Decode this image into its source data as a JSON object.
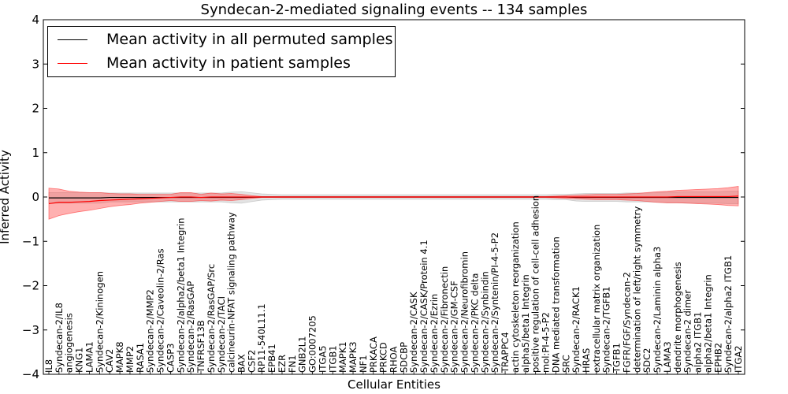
{
  "chart_data": {
    "type": "line",
    "title": "Syndecan-2-mediated signaling events -- 134 samples",
    "xlabel": "Cellular Entities",
    "ylabel": "Inferred Activity",
    "ylim": [
      -4,
      4
    ],
    "yticks": [
      -4,
      -3,
      -2,
      -1,
      0,
      1,
      2,
      3,
      4
    ],
    "grid": false,
    "legend_position": "top-left",
    "categories": [
      "IL8",
      "Syndecan-2/IL8",
      "angiogenesis",
      "KNG1",
      "LAMA1",
      "Syndecan-2/Kininogen",
      "CAV2",
      "MAPK8",
      "MMP2",
      "RASA1",
      "Syndecan-2/MMP2",
      "Syndecan-2/Caveolin-2/Ras",
      "CASP3",
      "Syndecan-2/alpha2/beta1 Integrin",
      "Syndecan-2/RasGAP",
      "TNFRSF13B",
      "Syndecan-2/RasGAP/Src",
      "Syndecan-2/TACI",
      "calcineurin-NFAT signaling pathway",
      "BAX",
      "CSF2",
      "RP11-540L11.1",
      "EPB41",
      "EZR",
      "FN1",
      "GNB2L1",
      "GO:0007205",
      "ITGA5",
      "ITGB1",
      "MAPK1",
      "MAPK3",
      "NF1",
      "PRKACA",
      "PRKCD",
      "RHOA",
      "SDCBP",
      "Syndecan-2/CASK",
      "Syndecan-2/CASK/Protein 4.1",
      "Syndecan-2/Ezrin",
      "Syndecan-2/Fibronectin",
      "Syndecan-2/GM-CSF",
      "Syndecan-2/Neurofibromin",
      "Syndecan-2/PKC delta",
      "Syndecan-2/Synbindin",
      "Syndecan-2/Syntenin/PI-4-5-P2",
      "TRAPPC4",
      "actin cytoskeleton reorganization",
      "alpha5/beta1 Integrin",
      "positive regulation of cell-cell adhesion",
      "mol:PI-4-5-P2",
      "DNA mediated transformation",
      "SRC",
      "Syndecan-2/RACK1",
      "HRAS",
      "extracellular matrix organization",
      "Syndecan-2/TGFB1",
      "TGFB1",
      "FGFR/FGF/Syndecan-2",
      "determination of left/right symmetry",
      "SDC2",
      "Syndecan-2/Laminin alpha3",
      "LAMA3",
      "dendrite morphogenesis",
      "Syndecan-2 dimer",
      "alpha2 ITGB1",
      "alpha2/beta1 Integrin",
      "EPHB2",
      "Syndecan-2/alpha2 ITGB1",
      "ITGA2"
    ],
    "series": [
      {
        "name": "Mean activity in all permuted samples",
        "color": "#000000",
        "values": [
          -0.02,
          -0.02,
          -0.02,
          -0.02,
          -0.02,
          -0.02,
          -0.01,
          -0.01,
          -0.01,
          -0.01,
          -0.01,
          -0.01,
          -0.01,
          -0.01,
          -0.01,
          -0.01,
          -0.01,
          -0.01,
          -0.01,
          -0.01,
          -0.005,
          0,
          0,
          0,
          0,
          0,
          0,
          0,
          0,
          0,
          0,
          0,
          0,
          0,
          0,
          0,
          0,
          0,
          0,
          0,
          0,
          0,
          0,
          0,
          0,
          0,
          0,
          0,
          0,
          0,
          0,
          0,
          -0.01,
          -0.01,
          -0.01,
          -0.01,
          -0.01,
          -0.01,
          -0.01,
          -0.01,
          -0.01,
          -0.01,
          -0.01,
          -0.01,
          -0.01,
          -0.01,
          -0.01,
          -0.01,
          -0.01
        ],
        "band": [
          0.12,
          0.12,
          0.12,
          0.12,
          0.12,
          0.12,
          0.1,
          0.1,
          0.1,
          0.1,
          0.1,
          0.1,
          0.1,
          0.1,
          0.1,
          0.1,
          0.1,
          0.1,
          0.12,
          0.13,
          0.1,
          0.07,
          0.06,
          0.05,
          0.05,
          0.05,
          0.05,
          0.05,
          0.05,
          0.05,
          0.05,
          0.05,
          0.05,
          0.05,
          0.05,
          0.05,
          0.05,
          0.05,
          0.05,
          0.05,
          0.05,
          0.05,
          0.05,
          0.05,
          0.05,
          0.05,
          0.05,
          0.05,
          0.05,
          0.05,
          0.06,
          0.06,
          0.08,
          0.09,
          0.09,
          0.09,
          0.09,
          0.1,
          0.1,
          0.1,
          0.11,
          0.12,
          0.12,
          0.13,
          0.13,
          0.13,
          0.13,
          0.14,
          0.14
        ]
      },
      {
        "name": "Mean activity in patient samples",
        "color": "#ff0000",
        "values": [
          -0.15,
          -0.12,
          -0.12,
          -0.11,
          -0.1,
          -0.08,
          -0.07,
          -0.06,
          -0.05,
          -0.04,
          -0.03,
          -0.02,
          -0.01,
          0,
          0,
          -0.01,
          0,
          0,
          0,
          0,
          0,
          0,
          0,
          0,
          0,
          0,
          0,
          0,
          0,
          0,
          0,
          0,
          0,
          0,
          0,
          0,
          0,
          0,
          0,
          0,
          0,
          0,
          0,
          0,
          0,
          0,
          0,
          0,
          0,
          0,
          0,
          0,
          0,
          0,
          0,
          0,
          0,
          0,
          0,
          0,
          0,
          0,
          0.01,
          0.01,
          0.01,
          0.01,
          0.01,
          0.01,
          0.02
        ],
        "band": [
          0.35,
          0.3,
          0.25,
          0.22,
          0.2,
          0.18,
          0.15,
          0.13,
          0.12,
          0.1,
          0.09,
          0.08,
          0.07,
          0.1,
          0.1,
          0.07,
          0.09,
          0.07,
          0.08,
          0.06,
          0.03,
          0.01,
          0.01,
          0.01,
          0.01,
          0.01,
          0.01,
          0.01,
          0.01,
          0.01,
          0.01,
          0.01,
          0.01,
          0.01,
          0.01,
          0.01,
          0.01,
          0.01,
          0.01,
          0.01,
          0.01,
          0.01,
          0.01,
          0.01,
          0.01,
          0.01,
          0.01,
          0.01,
          0.01,
          0.01,
          0.02,
          0.03,
          0.04,
          0.05,
          0.06,
          0.06,
          0.06,
          0.07,
          0.08,
          0.1,
          0.12,
          0.13,
          0.14,
          0.15,
          0.16,
          0.17,
          0.18,
          0.2,
          0.22
        ]
      }
    ]
  }
}
